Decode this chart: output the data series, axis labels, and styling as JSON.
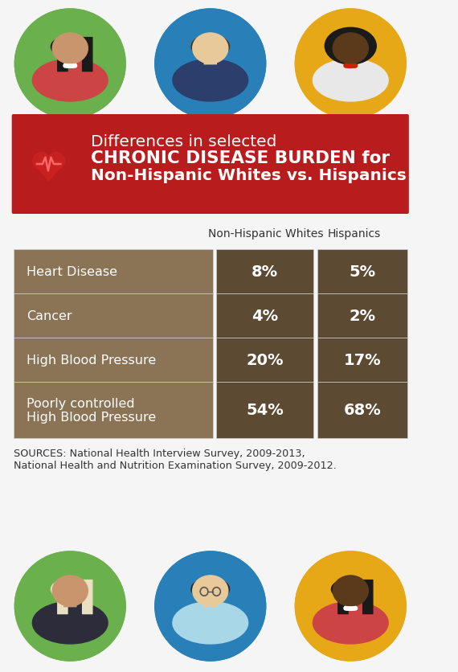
{
  "title_line1": "Differences in selected",
  "title_line2": "CHRONIC DISEASE BURDEN for",
  "title_line3": "Non-Hispanic Whites vs. Hispanics",
  "col_header1": "Non-Hispanic Whites",
  "col_header2": "Hispanics",
  "rows": [
    {
      "label": "Heart Disease",
      "val1": "8%",
      "val2": "5%"
    },
    {
      "label": "Cancer",
      "val1": "4%",
      "val2": "2%"
    },
    {
      "label": "High Blood Pressure",
      "val1": "20%",
      "val2": "17%"
    },
    {
      "label": "Poorly controlled\nHigh Blood Pressure",
      "val1": "54%",
      "val2": "68%"
    }
  ],
  "source_text": "SOURCES: National Health Interview Survey, 2009-2013,\nNational Health and Nutrition Examination Survey, 2009-2012.",
  "bg_color": "#f5f5f5",
  "title_bg": "#b81c1c",
  "row_label_bg": "#8b7355",
  "row_val_bg_dark": "#5c4a32",
  "row_val_bg_light": "#7a6545",
  "row_separator": "#cccccc",
  "title_text_color": "#ffffff",
  "row_label_text_color": "#ffffff",
  "row_val_text_color": "#ffffff",
  "header_text_color": "#333333",
  "source_text_color": "#333333",
  "avatar_top_colors": [
    "#6ab04c",
    "#2980b9",
    "#e6a817"
  ],
  "avatar_bot_colors": [
    "#6ab04c",
    "#2980b9",
    "#e6a817"
  ]
}
